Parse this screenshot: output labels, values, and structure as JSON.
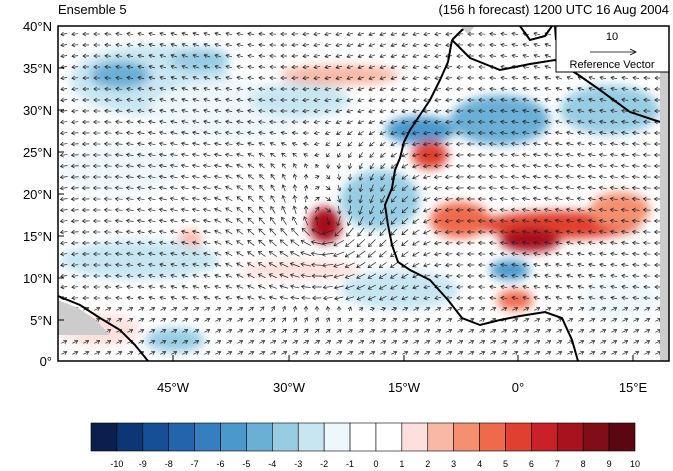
{
  "header": {
    "left_title": "Ensemble 5",
    "right_title": "(156 h forecast) 1200 UTC 16 Aug 2004"
  },
  "map": {
    "lat_labels": [
      "40°N",
      "35°N",
      "30°N",
      "25°N",
      "20°N",
      "15°N",
      "10°N",
      "5°N",
      "0°"
    ],
    "lon_labels": [
      "45°W",
      "30°W",
      "15°W",
      "0°",
      "15°E"
    ],
    "reference_vector": {
      "value": "10",
      "label": "Reference Vector"
    }
  },
  "colorbar": {
    "labels": [
      "-10",
      "-9",
      "-8",
      "-7",
      "-6",
      "-5",
      "-4",
      "-3",
      "-2",
      "-1",
      "0",
      "1",
      "2",
      "3",
      "4",
      "5",
      "6",
      "7",
      "8",
      "9",
      "10"
    ],
    "colors": [
      "#0a1f4d",
      "#0d3674",
      "#164f95",
      "#2166ac",
      "#3480bf",
      "#4a98cc",
      "#6aafd6",
      "#97cce3",
      "#c8e6f2",
      "#eef7fb",
      "#ffffff",
      "#ffffff",
      "#fde0dd",
      "#f9b7a5",
      "#f4906f",
      "#ef6a4c",
      "#e0402f",
      "#c82127",
      "#a8111e",
      "#800d18",
      "#5c0611"
    ]
  }
}
